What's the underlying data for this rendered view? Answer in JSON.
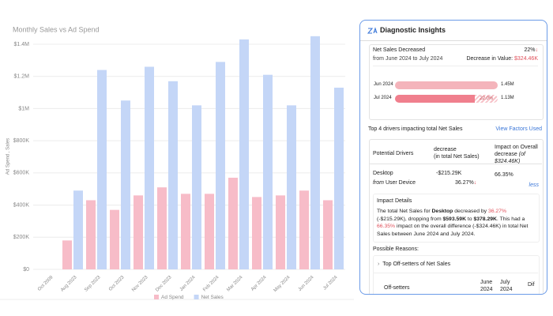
{
  "chart_data": {
    "type": "bar",
    "title": "Monthly Sales vs Ad Spend",
    "y_label": "Ad Spend , Sales",
    "categories": [
      "Oct 2009",
      "Aug 2023",
      "Sep 2023",
      "Oct 2023",
      "Nov 2023",
      "Dec 2023",
      "Jan 2024",
      "Feb 2024",
      "Mar 2024",
      "Apr 2024",
      "May 2024",
      "Jun 2024",
      "Jul 2024"
    ],
    "series": [
      {
        "name": "Ad Spend",
        "color": "#f7bcc8",
        "values": [
          null,
          180000,
          430000,
          370000,
          460000,
          510000,
          470000,
          470000,
          570000,
          450000,
          460000,
          490000,
          430000
        ]
      },
      {
        "name": "Net Sales",
        "color": "#c4d6f7",
        "values": [
          null,
          490000,
          1240000,
          1050000,
          1260000,
          1170000,
          1020000,
          1290000,
          1430000,
          1210000,
          1020000,
          1450000,
          1130000
        ]
      }
    ],
    "ylim": [
      0,
      1400000
    ],
    "yticks": [
      {
        "value": 0,
        "label": "$0"
      },
      {
        "value": 200000,
        "label": "$200K"
      },
      {
        "value": 400000,
        "label": "$400K"
      },
      {
        "value": 600000,
        "label": "$600K"
      },
      {
        "value": 800000,
        "label": "$800K"
      },
      {
        "value": 1000000,
        "label": "$1M"
      },
      {
        "value": 1200000,
        "label": "$1.2M"
      },
      {
        "value": 1400000,
        "label": "$1.4M"
      }
    ],
    "grid": true,
    "legend": "bottom"
  },
  "panel": {
    "title": "Diagnostic Insights",
    "summary": {
      "heading": "Net Sales Decreased",
      "change": "22%",
      "period": "from June 2024 to July 2024",
      "value_caption": "Decrease in Value:",
      "value": "$324.46K"
    },
    "comparison": [
      {
        "label": "Jun 2024",
        "value": 1450000,
        "value_label": "1.45M"
      },
      {
        "label": "Jul 2024",
        "value": 1130000,
        "value_label": "1.13M"
      }
    ],
    "comparison_change": "22.0%",
    "drivers_title": "Top 4 drivers impacting total Net Sales",
    "drivers_link": "View Factors Used",
    "table": {
      "headers": [
        "Potential Drivers",
        "decrease",
        "(in total Net Sales)",
        "Impact on Overall decrease",
        "(of $324.46K)"
      ],
      "row": {
        "driver": "Desktop",
        "source_prefix": "from",
        "source": "User Device",
        "decrease": "-$215.29K",
        "percent": "36.27%",
        "impact": "66.35%",
        "toggle": "less"
      }
    },
    "impact": {
      "title": "Impact Details",
      "paragraph": [
        "The total Net Sales for ",
        "Desktop",
        " decreased by ",
        "36.27%",
        " (-$215.29K), dropping from ",
        "$593.59K",
        " to ",
        "$378.29K",
        ". This had a ",
        "66.35%",
        " impact on the overall difference (-$324.46K) in total Net Sales between June 2024 and July 2024."
      ]
    },
    "reasons_title": "Possible Reasons:",
    "offsetters": {
      "title": "Top Off-setters of Net Sales",
      "headers": [
        "Off-setters",
        "June 2024",
        "July 2024",
        "Dif"
      ]
    }
  }
}
